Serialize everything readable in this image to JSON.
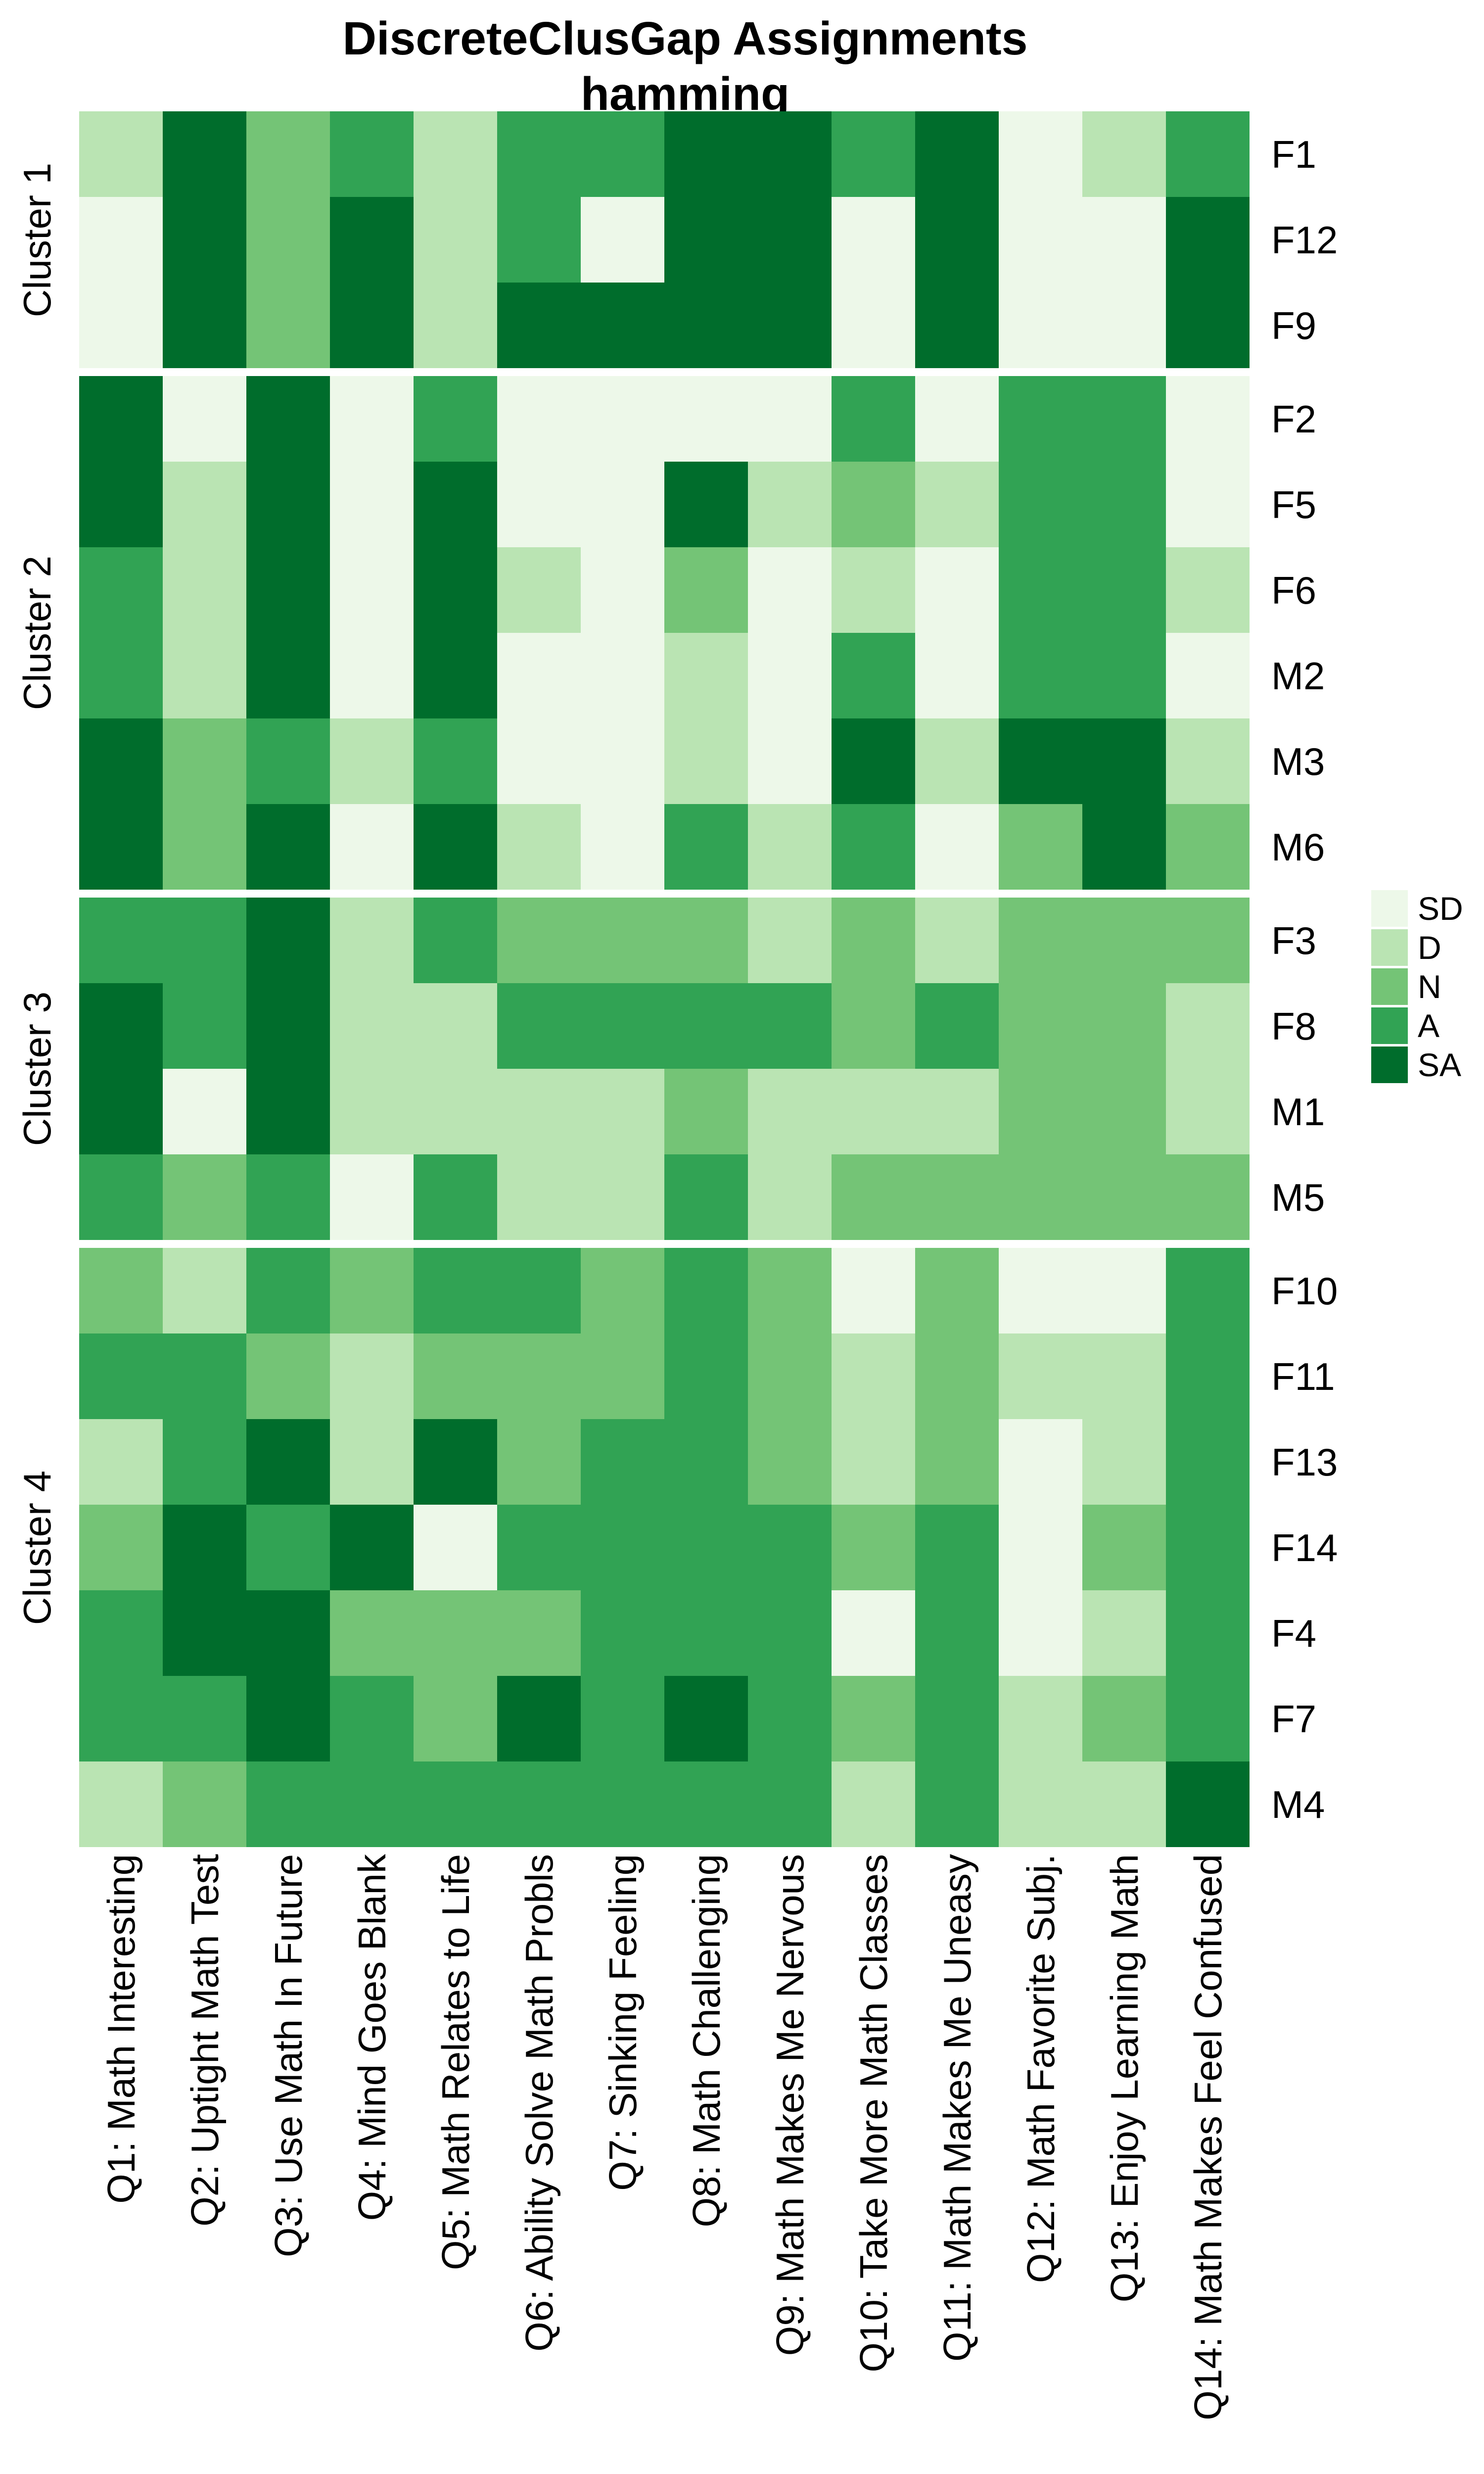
{
  "title": {
    "line1": "DiscreteClusGap Assignments",
    "line2": "hamming"
  },
  "legend": {
    "entries": [
      {
        "label": "SD",
        "color": "#edf8e9"
      },
      {
        "label": "D",
        "color": "#bae4b3"
      },
      {
        "label": "N",
        "color": "#74c476"
      },
      {
        "label": "A",
        "color": "#31a354"
      },
      {
        "label": "SA",
        "color": "#006d2c"
      }
    ]
  },
  "chart_data": {
    "type": "heatmap",
    "title": "DiscreteClusGap Assignments",
    "subtitle": "hamming",
    "legend_position": "right",
    "levels": [
      "SD",
      "D",
      "N",
      "A",
      "SA"
    ],
    "colors": {
      "SD": "#edf8e9",
      "D": "#bae4b3",
      "N": "#74c476",
      "A": "#31a354",
      "SA": "#006d2c"
    },
    "columns": [
      "Q1: Math Interesting",
      "Q2: Uptight Math Test",
      "Q3: Use Math In Future",
      "Q4: Mind Goes Blank",
      "Q5: Math Relates to Life",
      "Q6: Ability Solve Math Probls",
      "Q7: Sinking Feeling",
      "Q8: Math Challenging",
      "Q9: Math Makes Me Nervous",
      "Q10: Take More Math Classes",
      "Q11: Math Makes Me Uneasy",
      "Q12: Math Favorite Subj.",
      "Q13: Enjoy Learning Math",
      "Q14: Math Makes Feel Confused"
    ],
    "clusters": [
      {
        "name": "Cluster 1",
        "rows": [
          {
            "id": "F1",
            "values": [
              "D",
              "SA",
              "N",
              "A",
              "D",
              "A",
              "A",
              "SA",
              "SA",
              "A",
              "SA",
              "SD",
              "D",
              "A"
            ]
          },
          {
            "id": "F12",
            "values": [
              "SD",
              "SA",
              "N",
              "SA",
              "D",
              "A",
              "SD",
              "SA",
              "SA",
              "SD",
              "SA",
              "SD",
              "SD",
              "SA"
            ]
          },
          {
            "id": "F9",
            "values": [
              "SD",
              "SA",
              "N",
              "SA",
              "D",
              "SA",
              "SA",
              "SA",
              "SA",
              "SD",
              "SA",
              "SD",
              "SD",
              "SA"
            ]
          }
        ]
      },
      {
        "name": "Cluster 2",
        "rows": [
          {
            "id": "F2",
            "values": [
              "SA",
              "SD",
              "SA",
              "SD",
              "A",
              "SD",
              "SD",
              "SD",
              "SD",
              "A",
              "SD",
              "A",
              "A",
              "SD"
            ]
          },
          {
            "id": "F5",
            "values": [
              "SA",
              "D",
              "SA",
              "SD",
              "SA",
              "SD",
              "SD",
              "SA",
              "D",
              "N",
              "D",
              "A",
              "A",
              "SD"
            ]
          },
          {
            "id": "F6",
            "values": [
              "A",
              "D",
              "SA",
              "SD",
              "SA",
              "D",
              "SD",
              "N",
              "SD",
              "D",
              "SD",
              "A",
              "A",
              "D"
            ]
          },
          {
            "id": "M2",
            "values": [
              "A",
              "D",
              "SA",
              "SD",
              "SA",
              "SD",
              "SD",
              "D",
              "SD",
              "A",
              "SD",
              "A",
              "A",
              "SD"
            ]
          },
          {
            "id": "M3",
            "values": [
              "SA",
              "N",
              "A",
              "D",
              "A",
              "SD",
              "SD",
              "D",
              "SD",
              "SA",
              "D",
              "SA",
              "SA",
              "D"
            ]
          },
          {
            "id": "M6",
            "values": [
              "SA",
              "N",
              "SA",
              "SD",
              "SA",
              "D",
              "SD",
              "A",
              "D",
              "A",
              "SD",
              "N",
              "SA",
              "N"
            ]
          }
        ]
      },
      {
        "name": "Cluster 3",
        "rows": [
          {
            "id": "F3",
            "values": [
              "A",
              "A",
              "SA",
              "D",
              "A",
              "N",
              "N",
              "N",
              "D",
              "N",
              "D",
              "N",
              "N",
              "N"
            ]
          },
          {
            "id": "F8",
            "values": [
              "SA",
              "A",
              "SA",
              "D",
              "D",
              "A",
              "A",
              "A",
              "A",
              "N",
              "A",
              "N",
              "N",
              "D"
            ]
          },
          {
            "id": "M1",
            "values": [
              "SA",
              "SD",
              "SA",
              "D",
              "D",
              "D",
              "D",
              "N",
              "D",
              "D",
              "D",
              "N",
              "N",
              "D"
            ]
          },
          {
            "id": "M5",
            "values": [
              "A",
              "N",
              "A",
              "SD",
              "A",
              "D",
              "D",
              "A",
              "D",
              "N",
              "N",
              "N",
              "N",
              "N"
            ]
          }
        ]
      },
      {
        "name": "Cluster 4",
        "rows": [
          {
            "id": "F10",
            "values": [
              "N",
              "D",
              "A",
              "N",
              "A",
              "A",
              "N",
              "A",
              "N",
              "SD",
              "N",
              "SD",
              "SD",
              "A"
            ]
          },
          {
            "id": "F11",
            "values": [
              "A",
              "A",
              "N",
              "D",
              "N",
              "N",
              "N",
              "A",
              "N",
              "D",
              "N",
              "D",
              "D",
              "A"
            ]
          },
          {
            "id": "F13",
            "values": [
              "D",
              "A",
              "SA",
              "D",
              "SA",
              "N",
              "A",
              "A",
              "N",
              "D",
              "N",
              "SD",
              "D",
              "A"
            ]
          },
          {
            "id": "F14",
            "values": [
              "N",
              "SA",
              "A",
              "SA",
              "SD",
              "A",
              "A",
              "A",
              "A",
              "N",
              "A",
              "SD",
              "N",
              "A"
            ]
          },
          {
            "id": "F4",
            "values": [
              "A",
              "SA",
              "SA",
              "N",
              "N",
              "N",
              "A",
              "A",
              "A",
              "SD",
              "A",
              "SD",
              "D",
              "A"
            ]
          },
          {
            "id": "F7",
            "values": [
              "A",
              "A",
              "SA",
              "A",
              "N",
              "SA",
              "A",
              "SA",
              "A",
              "N",
              "A",
              "D",
              "N",
              "A"
            ]
          },
          {
            "id": "M4",
            "values": [
              "D",
              "N",
              "A",
              "A",
              "A",
              "A",
              "A",
              "A",
              "A",
              "D",
              "A",
              "D",
              "D",
              "SA"
            ]
          }
        ]
      }
    ]
  }
}
